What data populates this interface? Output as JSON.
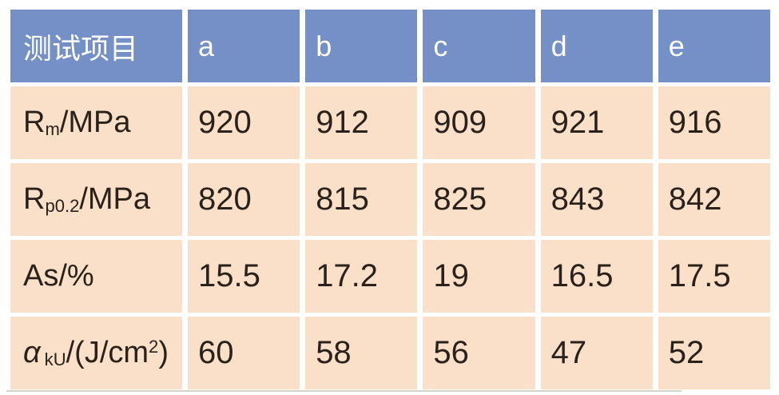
{
  "colors": {
    "header_bg": "#7490C7",
    "header_text": "#FFFFFF",
    "row_bg": "#FBE0C9",
    "body_text": "#2A211B",
    "grid_gap": "#FFFFFF"
  },
  "table": {
    "columns": [
      "测试项目",
      "a",
      "b",
      "c",
      "d",
      "e"
    ],
    "rows": [
      {
        "label_parts": [
          "R",
          "m",
          "/MPa"
        ],
        "values": [
          "920",
          "912",
          "909",
          "921",
          "916"
        ]
      },
      {
        "label_parts": [
          "R",
          "p0.2",
          "/MPa"
        ],
        "values": [
          "820",
          "815",
          "825",
          "843",
          "842"
        ]
      },
      {
        "label_parts": [
          "As/%"
        ],
        "values": [
          "15.5",
          "17.2",
          "19",
          "16.5",
          "17.5"
        ]
      },
      {
        "label_parts": [
          "α",
          "kU",
          "/(J/cm",
          "2",
          ")"
        ],
        "values": [
          "60",
          "58",
          "56",
          "47",
          "52"
        ]
      }
    ]
  },
  "chart_data": {
    "type": "table",
    "title": "",
    "columns": [
      "测试项目",
      "a",
      "b",
      "c",
      "d",
      "e"
    ],
    "rows": [
      {
        "label": "Rm/MPa",
        "values": [
          920,
          912,
          909,
          921,
          916
        ]
      },
      {
        "label": "Rp0.2/MPa",
        "values": [
          820,
          815,
          825,
          843,
          842
        ]
      },
      {
        "label": "As/%",
        "values": [
          15.5,
          17.2,
          19,
          16.5,
          17.5
        ]
      },
      {
        "label": "αkU/(J/cm2)",
        "values": [
          60,
          58,
          56,
          47,
          52
        ]
      }
    ]
  }
}
